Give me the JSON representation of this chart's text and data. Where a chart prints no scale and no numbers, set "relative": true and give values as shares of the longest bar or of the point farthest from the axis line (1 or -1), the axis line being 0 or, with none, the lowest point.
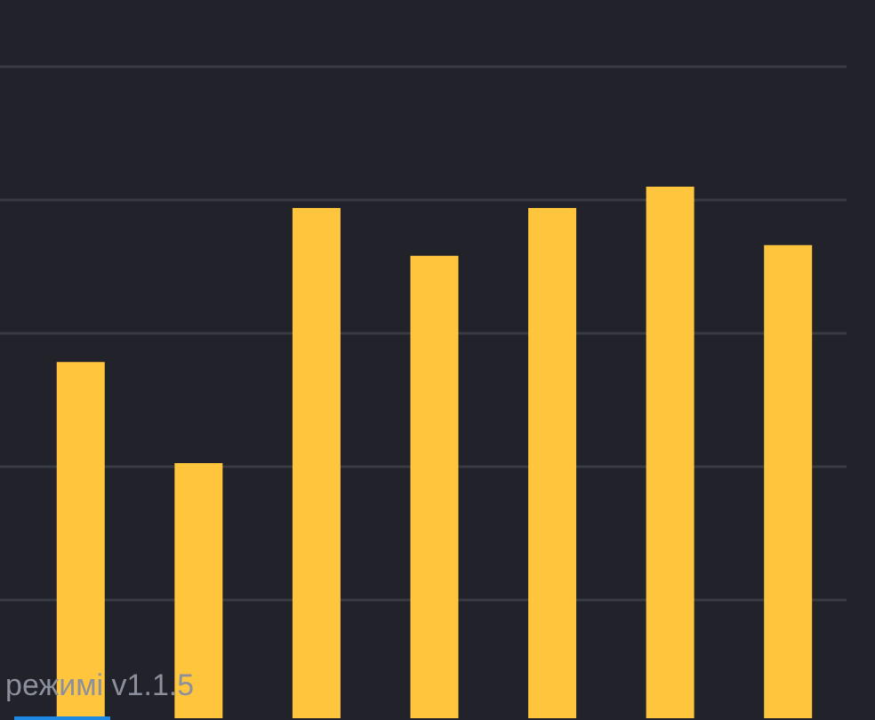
{
  "chart_data": {
    "type": "bar",
    "categories": [
      null,
      null,
      null,
      null,
      null,
      null,
      null
    ],
    "values": [
      0.67,
      0.48,
      0.96,
      0.87,
      0.96,
      1,
      0.89
    ],
    "color": "#ffc53d",
    "relative": true,
    "grid": "y",
    "annotations": [
      "режимі v1.1.5"
    ]
  }
}
